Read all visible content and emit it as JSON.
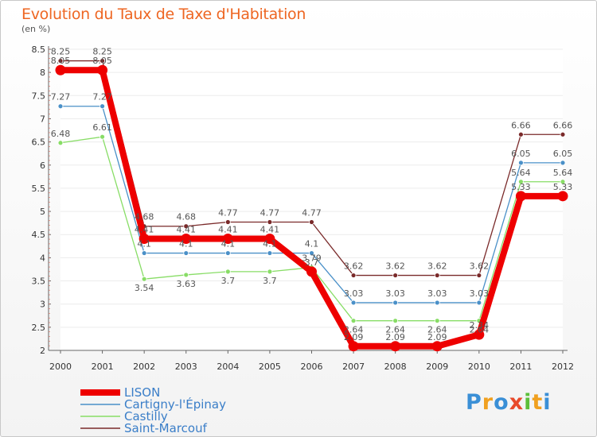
{
  "title": "Evolution du Taux de Taxe d'Habitation",
  "unit": "(en %)",
  "logo": {
    "letters": [
      "P",
      "r",
      "o",
      "x",
      "i",
      "t",
      "i"
    ],
    "colors": [
      "#3a8fd6",
      "#f0a020",
      "#3a8fd6",
      "#e84a2a",
      "#5cbf3a",
      "#f0a020",
      "#3a8fd6"
    ]
  },
  "chart_data": {
    "type": "line",
    "title": "Evolution du Taux de Taxe d'Habitation",
    "ylabel": "(en %)",
    "categories": [
      "2000",
      "2001",
      "2002",
      "2003",
      "2004",
      "2005",
      "2006",
      "2007",
      "2008",
      "2009",
      "2010",
      "2011",
      "2012"
    ],
    "ylim": [
      2,
      8.5
    ],
    "yticks": [
      "2",
      "2.5",
      "3",
      "3.5",
      "4",
      "4.5",
      "5",
      "5.5",
      "6",
      "6.5",
      "7",
      "7.5",
      "8",
      "8.5"
    ],
    "series": [
      {
        "name": "LISON",
        "color": "#ee0000",
        "values": [
          8.05,
          8.05,
          4.41,
          4.41,
          4.41,
          4.41,
          3.7,
          2.09,
          2.09,
          2.09,
          2.34,
          5.33,
          5.33
        ],
        "labels": [
          "8.05",
          "8.05",
          "4.41",
          "4.41",
          "4.41",
          "4.41",
          "3.7",
          "2.09",
          "2.09",
          "2.09",
          "2.34",
          "5.33",
          "5.33"
        ]
      },
      {
        "name": "Cartigny-l'Épinay",
        "color": "#4a90c8",
        "values": [
          7.27,
          7.27,
          4.1,
          4.1,
          4.1,
          4.1,
          4.1,
          3.03,
          3.03,
          3.03,
          3.03,
          6.05,
          6.05
        ],
        "labels": [
          "7.27",
          "7.27",
          "4.1",
          "4.1",
          "4.1",
          "4.1",
          "4.1",
          "3.03",
          "3.03",
          "3.03",
          "3.03",
          "6.05",
          "6.05"
        ]
      },
      {
        "name": "Castilly",
        "color": "#88dd66",
        "values": [
          6.48,
          6.61,
          3.54,
          3.63,
          3.7,
          3.7,
          3.79,
          2.64,
          2.64,
          2.64,
          2.64,
          5.64,
          5.64
        ],
        "labels": [
          "6.48",
          "6.61",
          "3.54",
          "3.63",
          "3.7",
          "3.7",
          "3.79",
          "2.64",
          "2.64",
          "2.64",
          "2.64",
          "5.64",
          "5.64"
        ]
      },
      {
        "name": "Saint-Marcouf",
        "color": "#7a2a2a",
        "values": [
          8.25,
          8.25,
          4.68,
          4.68,
          4.77,
          4.77,
          4.77,
          3.62,
          3.62,
          3.62,
          3.62,
          6.66,
          6.66
        ],
        "labels": [
          "8.25",
          "8.25",
          "4.68",
          "4.68",
          "4.77",
          "4.77",
          "4.77",
          "3.62",
          "3.62",
          "3.62",
          "3.62",
          "6.66",
          "6.66"
        ]
      }
    ],
    "legend": [
      "LISON",
      "Cartigny-l'Épinay",
      "Castilly",
      "Saint-Marcouf"
    ],
    "legend_position": "bottom-left"
  }
}
